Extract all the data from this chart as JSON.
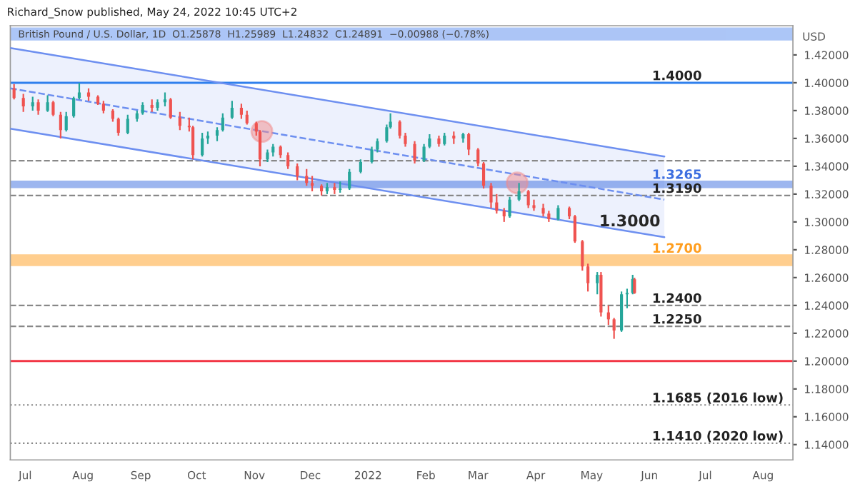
{
  "chart_data": {
    "type": "candlestick",
    "title": "Richard_Snow published, May 24, 2022 10:45 UTC+2",
    "subtitle": "British Pound / U.S. Dollar, 1D  O1.25878  H1.25989  L1.24832  C1.24891  −0.00988 (−0.78%)",
    "ylabel": "USD",
    "x": [
      "2021-06-25",
      "2021-06-30",
      "2021-07-05",
      "2021-07-08",
      "2021-07-13",
      "2021-07-16",
      "2021-07-20",
      "2021-07-23",
      "2021-07-27",
      "2021-07-30",
      "2021-08-04",
      "2021-08-09",
      "2021-08-12",
      "2021-08-17",
      "2021-08-20",
      "2021-08-25",
      "2021-08-30",
      "2021-09-02",
      "2021-09-07",
      "2021-09-10",
      "2021-09-14",
      "2021-09-17",
      "2021-09-22",
      "2021-09-27",
      "2021-09-29",
      "2021-10-04",
      "2021-10-07",
      "2021-10-12",
      "2021-10-15",
      "2021-10-20",
      "2021-10-25",
      "2021-10-28",
      "2021-11-02",
      "2021-11-04",
      "2021-11-08",
      "2021-11-11",
      "2021-11-15",
      "2021-11-19",
      "2021-11-24",
      "2021-11-29",
      "2021-12-02",
      "2021-12-07",
      "2021-12-10",
      "2021-12-14",
      "2021-12-17",
      "2021-12-22",
      "2021-12-28",
      "2022-01-03",
      "2022-01-06",
      "2022-01-11",
      "2022-01-13",
      "2022-01-18",
      "2022-01-21",
      "2022-01-26",
      "2022-01-31",
      "2022-02-03",
      "2022-02-08",
      "2022-02-11",
      "2022-02-16",
      "2022-02-21",
      "2022-02-24",
      "2022-03-01",
      "2022-03-04",
      "2022-03-08",
      "2022-03-11",
      "2022-03-15",
      "2022-03-18",
      "2022-03-23",
      "2022-03-28",
      "2022-03-31",
      "2022-04-05",
      "2022-04-08",
      "2022-04-13",
      "2022-04-19",
      "2022-04-22",
      "2022-04-26",
      "2022-04-29",
      "2022-05-04",
      "2022-05-06",
      "2022-05-10",
      "2022-05-13",
      "2022-05-17",
      "2022-05-20",
      "2022-05-23",
      "2022-05-24"
    ],
    "ohlc": [
      [
        1.396,
        1.399,
        1.388,
        1.389
      ],
      [
        1.389,
        1.392,
        1.379,
        1.383
      ],
      [
        1.383,
        1.39,
        1.38,
        1.386
      ],
      [
        1.386,
        1.388,
        1.377,
        1.38
      ],
      [
        1.38,
        1.391,
        1.379,
        1.386
      ],
      [
        1.386,
        1.387,
        1.376,
        1.377
      ],
      [
        1.377,
        1.379,
        1.36,
        1.366
      ],
      [
        1.366,
        1.379,
        1.365,
        1.376
      ],
      [
        1.376,
        1.39,
        1.375,
        1.389
      ],
      [
        1.389,
        1.4,
        1.388,
        1.393
      ],
      [
        1.393,
        1.396,
        1.387,
        1.39
      ],
      [
        1.39,
        1.391,
        1.384,
        1.385
      ],
      [
        1.385,
        1.387,
        1.378,
        1.38
      ],
      [
        1.38,
        1.381,
        1.372,
        1.374
      ],
      [
        1.374,
        1.375,
        1.362,
        1.364
      ],
      [
        1.364,
        1.377,
        1.363,
        1.374
      ],
      [
        1.374,
        1.38,
        1.372,
        1.378
      ],
      [
        1.378,
        1.386,
        1.377,
        1.384
      ],
      [
        1.384,
        1.388,
        1.379,
        1.382
      ],
      [
        1.382,
        1.388,
        1.38,
        1.386
      ],
      [
        1.386,
        1.393,
        1.383,
        1.388
      ],
      [
        1.388,
        1.389,
        1.374,
        1.375
      ],
      [
        1.375,
        1.379,
        1.366,
        1.369
      ],
      [
        1.369,
        1.375,
        1.365,
        1.368
      ],
      [
        1.368,
        1.369,
        1.345,
        1.348
      ],
      [
        1.348,
        1.364,
        1.347,
        1.36
      ],
      [
        1.36,
        1.365,
        1.356,
        1.362
      ],
      [
        1.362,
        1.368,
        1.358,
        1.366
      ],
      [
        1.366,
        1.378,
        1.365,
        1.375
      ],
      [
        1.375,
        1.387,
        1.374,
        1.382
      ],
      [
        1.382,
        1.385,
        1.374,
        1.377
      ],
      [
        1.377,
        1.38,
        1.37,
        1.371
      ],
      [
        1.371,
        1.372,
        1.362,
        1.365
      ],
      [
        1.365,
        1.366,
        1.34,
        1.345
      ],
      [
        1.345,
        1.352,
        1.343,
        1.35
      ],
      [
        1.35,
        1.356,
        1.347,
        1.354
      ],
      [
        1.354,
        1.355,
        1.346,
        1.348
      ],
      [
        1.348,
        1.35,
        1.338,
        1.34
      ],
      [
        1.34,
        1.342,
        1.33,
        1.333
      ],
      [
        1.333,
        1.338,
        1.326,
        1.328
      ],
      [
        1.328,
        1.333,
        1.322,
        1.326
      ],
      [
        1.326,
        1.327,
        1.319,
        1.322
      ],
      [
        1.322,
        1.328,
        1.32,
        1.325
      ],
      [
        1.325,
        1.328,
        1.32,
        1.323
      ],
      [
        1.323,
        1.329,
        1.321,
        1.324
      ],
      [
        1.324,
        1.338,
        1.323,
        1.336
      ],
      [
        1.336,
        1.345,
        1.335,
        1.343
      ],
      [
        1.343,
        1.354,
        1.342,
        1.352
      ],
      [
        1.352,
        1.36,
        1.35,
        1.358
      ],
      [
        1.358,
        1.37,
        1.357,
        1.368
      ],
      [
        1.368,
        1.378,
        1.367,
        1.372
      ],
      [
        1.372,
        1.373,
        1.36,
        1.362
      ],
      [
        1.362,
        1.364,
        1.354,
        1.356
      ],
      [
        1.356,
        1.358,
        1.342,
        1.344
      ],
      [
        1.344,
        1.356,
        1.343,
        1.354
      ],
      [
        1.354,
        1.363,
        1.353,
        1.36
      ],
      [
        1.36,
        1.362,
        1.354,
        1.356
      ],
      [
        1.356,
        1.364,
        1.355,
        1.362
      ],
      [
        1.362,
        1.365,
        1.356,
        1.36
      ],
      [
        1.36,
        1.364,
        1.357,
        1.363
      ],
      [
        1.363,
        1.364,
        1.348,
        1.352
      ],
      [
        1.352,
        1.353,
        1.34,
        1.342
      ],
      [
        1.342,
        1.343,
        1.324,
        1.326
      ],
      [
        1.326,
        1.328,
        1.31,
        1.314
      ],
      [
        1.314,
        1.32,
        1.306,
        1.308
      ],
      [
        1.308,
        1.31,
        1.3,
        1.304
      ],
      [
        1.304,
        1.318,
        1.303,
        1.316
      ],
      [
        1.316,
        1.328,
        1.315,
        1.322
      ],
      [
        1.322,
        1.323,
        1.31,
        1.312
      ],
      [
        1.312,
        1.316,
        1.308,
        1.31
      ],
      [
        1.31,
        1.313,
        1.304,
        1.306
      ],
      [
        1.306,
        1.308,
        1.3,
        1.302
      ],
      [
        1.302,
        1.312,
        1.301,
        1.31
      ],
      [
        1.31,
        1.311,
        1.302,
        1.304
      ],
      [
        1.304,
        1.305,
        1.285,
        1.286
      ],
      [
        1.286,
        1.287,
        1.265,
        1.268
      ],
      [
        1.268,
        1.27,
        1.25,
        1.256
      ],
      [
        1.256,
        1.264,
        1.248,
        1.262
      ],
      [
        1.262,
        1.264,
        1.232,
        1.235
      ],
      [
        1.235,
        1.24,
        1.226,
        1.23
      ],
      [
        1.23,
        1.231,
        1.216,
        1.222
      ],
      [
        1.222,
        1.25,
        1.221,
        1.248
      ],
      [
        1.248,
        1.252,
        1.238,
        1.249
      ],
      [
        1.249,
        1.262,
        1.248,
        1.259
      ],
      [
        1.25878,
        1.25989,
        1.24832,
        1.24891
      ]
    ],
    "series": [
      {
        "type": "line",
        "x": [
          "2021-06-23",
          "2022-06-09"
        ],
        "values": [
          1.396,
          1.316
        ],
        "lower": [
          1.367,
          1.289
        ],
        "upper": [
          1.425,
          1.347
        ],
        "color": "#6d8ff0",
        "line_style": "dashed"
      },
      {
        "type": "scatter",
        "x": [
          "2021-11-05",
          "2022-03-22"
        ],
        "values": [
          1.365,
          1.328
        ],
        "color": "#f28b8b",
        "marker": "circle"
      }
    ],
    "ref_lines": [
      {
        "axis": "y",
        "value": 1.4,
        "label": "1.4000",
        "color": "#2f80ed",
        "line_style": "solid"
      },
      {
        "axis": "y",
        "value": 1.344,
        "color": "#888888",
        "line_style": "dashed"
      },
      {
        "axis": "y",
        "value": 1.319,
        "label": "1.3190",
        "color": "#888888",
        "line_style": "dashed"
      },
      {
        "axis": "y",
        "value": 1.24,
        "label": "1.2400",
        "color": "#888888",
        "line_style": "dashed"
      },
      {
        "axis": "y",
        "value": 1.225,
        "label": "1.2250",
        "color": "#888888",
        "line_style": "dashed"
      },
      {
        "axis": "y",
        "value": 1.2,
        "color": "#f23645",
        "line_style": "solid"
      },
      {
        "axis": "y",
        "value": 1.1685,
        "label": "1.1685 (2016 low)",
        "color": "#888888",
        "line_style": "dotted"
      },
      {
        "axis": "y",
        "value": 1.141,
        "label": "1.1410 (2020 low)",
        "color": "#888888",
        "line_style": "dotted"
      }
    ],
    "bands": [
      {
        "axis": "y",
        "from": 1.431,
        "to": 1.439,
        "color": "#5b8def"
      },
      {
        "axis": "y",
        "from": 1.325,
        "to": 1.329,
        "label": "1.3265",
        "color": "#3d6fe0"
      },
      {
        "axis": "y",
        "from": 1.269,
        "to": 1.276,
        "label": "1.2700",
        "color": "#ff9e1f"
      }
    ],
    "annotations": [
      {
        "text": "1.3000",
        "x": "2022-05-05",
        "y": 1.3
      }
    ],
    "xlim": [
      "2021-06-23",
      "2022-08-17"
    ],
    "xticks": [
      {
        "value": "2021-07-01",
        "label": "Jul"
      },
      {
        "value": "2021-08-01",
        "label": "Aug"
      },
      {
        "value": "2021-09-01",
        "label": "Sep"
      },
      {
        "value": "2021-10-01",
        "label": "Oct"
      },
      {
        "value": "2021-11-01",
        "label": "Nov"
      },
      {
        "value": "2021-12-01",
        "label": "Dec"
      },
      {
        "value": "2022-01-01",
        "label": "2022"
      },
      {
        "value": "2022-02-01",
        "label": "Feb"
      },
      {
        "value": "2022-03-01",
        "label": "Mar"
      },
      {
        "value": "2022-04-01",
        "label": "Apr"
      },
      {
        "value": "2022-05-01",
        "label": "May"
      },
      {
        "value": "2022-06-01",
        "label": "Jun"
      },
      {
        "value": "2022-07-01",
        "label": "Jul"
      },
      {
        "value": "2022-08-01",
        "label": "Aug"
      }
    ],
    "ylim": [
      1.129,
      1.441
    ],
    "yticks": [
      {
        "value": 1.14,
        "label": "1.14000"
      },
      {
        "value": 1.16,
        "label": "1.16000"
      },
      {
        "value": 1.18,
        "label": "1.18000"
      },
      {
        "value": 1.2,
        "label": "1.20000"
      },
      {
        "value": 1.22,
        "label": "1.22000"
      },
      {
        "value": 1.24,
        "label": "1.24000"
      },
      {
        "value": 1.26,
        "label": "1.26000"
      },
      {
        "value": 1.28,
        "label": "1.28000"
      },
      {
        "value": 1.3,
        "label": "1.30000"
      },
      {
        "value": 1.32,
        "label": "1.32000"
      },
      {
        "value": 1.34,
        "label": "1.34000"
      },
      {
        "value": 1.36,
        "label": "1.36000"
      },
      {
        "value": 1.38,
        "label": "1.38000"
      },
      {
        "value": 1.4,
        "label": "1.40000"
      },
      {
        "value": 1.42,
        "label": "1.42000"
      }
    ],
    "grid": false,
    "legend": false
  }
}
